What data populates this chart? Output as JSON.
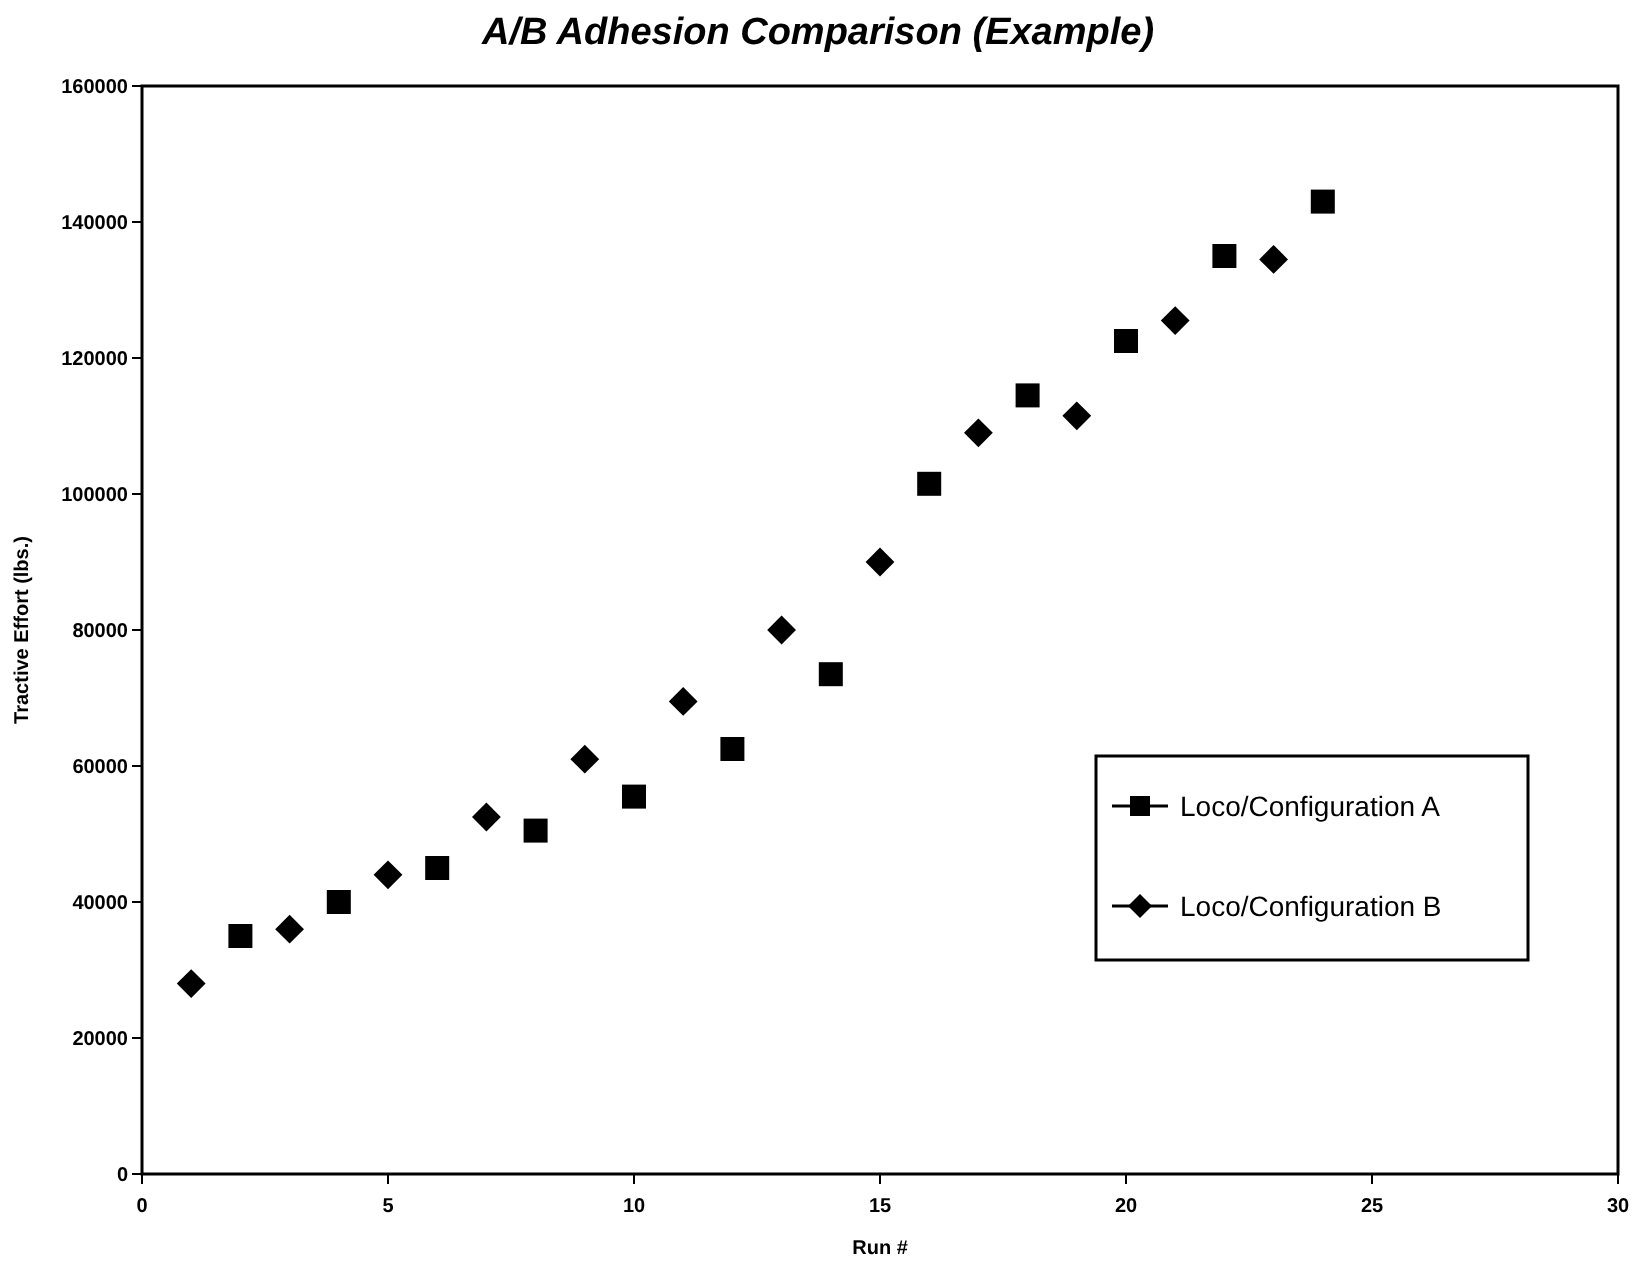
{
  "chart_data": {
    "type": "scatter",
    "title": "A/B Adhesion Comparison (Example)",
    "xlabel": "Run #",
    "ylabel": "Tractive Effort (lbs.)",
    "xlim": [
      0,
      30
    ],
    "xticks": [
      0,
      5,
      10,
      15,
      20,
      25,
      30
    ],
    "ylim": [
      0,
      160000
    ],
    "yticks": [
      0,
      20000,
      40000,
      60000,
      80000,
      100000,
      120000,
      140000,
      160000
    ],
    "grid": false,
    "legend": "right",
    "series": [
      {
        "name": "Loco/Configuration A",
        "color": "#000000",
        "marker": "square",
        "x": [
          2,
          4,
          6,
          8,
          10,
          12,
          14,
          16,
          18,
          20,
          22,
          24
        ],
        "values": [
          35000,
          40000,
          45000,
          50500,
          55500,
          62500,
          73500,
          101500,
          114500,
          122500,
          135000,
          143000
        ]
      },
      {
        "name": "Loco/Configuration B",
        "color": "#000000",
        "marker": "diamond",
        "x": [
          1,
          3,
          5,
          7,
          9,
          11,
          13,
          15,
          17,
          19,
          21,
          23
        ],
        "values": [
          28000,
          36000,
          44000,
          52500,
          61000,
          69500,
          80000,
          90000,
          109000,
          111500,
          125500,
          134500
        ]
      }
    ]
  }
}
